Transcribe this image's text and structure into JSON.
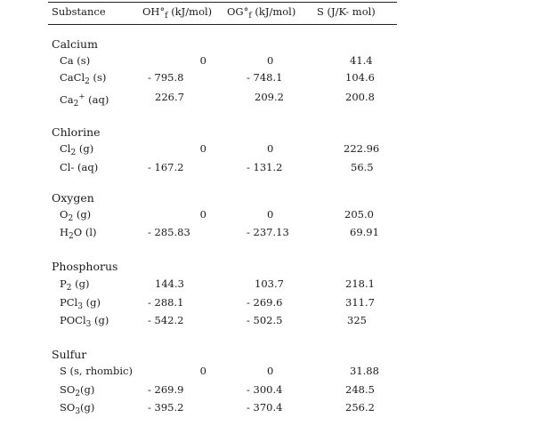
{
  "header": {
    "substance": "Substance",
    "h_prefix": "OH°",
    "h_sub": "f",
    "h_unit": "(kJ/mol)",
    "g_prefix": "OG°",
    "g_sub": "f",
    "g_unit": "(kJ/mol)",
    "s": "S (J/K- mol)"
  },
  "calcium": {
    "title": "Calcium",
    "ca_s": {
      "name": "Ca (s)",
      "h": "0",
      "g": "0",
      "s": "41.4"
    },
    "cacl2": {
      "pre": "CaCl",
      "sub": "2",
      "post": " (s)",
      "h": "- 795.8",
      "g": "- 748.1",
      "s": "104.6"
    },
    "ca2": {
      "pre": "Ca",
      "sub": "2",
      "sup": "+",
      "post": " (aq)",
      "h": "226.7",
      "g": "209.2",
      "s": "200.8"
    }
  },
  "chlorine": {
    "title": "Chlorine",
    "cl2": {
      "pre": "Cl",
      "sub": "2",
      "post": " (g)",
      "h": "0",
      "g": "0",
      "s": "222.96"
    },
    "clm": {
      "name": "Cl- (aq)",
      "h": "- 167.2",
      "g": "- 131.2",
      "s": "56.5"
    }
  },
  "oxygen": {
    "title": "Oxygen",
    "o2": {
      "pre": "O",
      "sub": "2",
      "post": " (g)",
      "h": "0",
      "g": "0",
      "s": "205.0"
    },
    "h2o": {
      "pre": "H",
      "sub": "2",
      "post": "O (l)",
      "h": "- 285.83",
      "g": "- 237.13",
      "s": "69.91"
    }
  },
  "phosphorus": {
    "title": "Phosphorus",
    "p2": {
      "pre": "P",
      "sub": "2",
      "post": " (g)",
      "h": "144.3",
      "g": "103.7",
      "s": "218.1"
    },
    "pcl3": {
      "pre": "PCl",
      "sub": "3",
      "post": " (g)",
      "h": "- 288.1",
      "g": "- 269.6",
      "s": "311.7"
    },
    "pocl3": {
      "pre": "POCl",
      "sub": "3",
      "post": " (g)",
      "h": "- 542.2",
      "g": "- 502.5",
      "s": "325"
    }
  },
  "sulfur": {
    "title": "Sulfur",
    "s_rh": {
      "name": "S (s, rhombic)",
      "h": "0",
      "g": "0",
      "s": "31.88"
    },
    "so2": {
      "pre": "SO",
      "sub": "2",
      "post": "(g)",
      "h": "- 269.9",
      "g": "- 300.4",
      "s": "248.5"
    },
    "so3": {
      "pre": "SO",
      "sub": "3",
      "post": "(g)",
      "h": "- 395.2",
      "g": "- 370.4",
      "s": "256.2"
    }
  }
}
